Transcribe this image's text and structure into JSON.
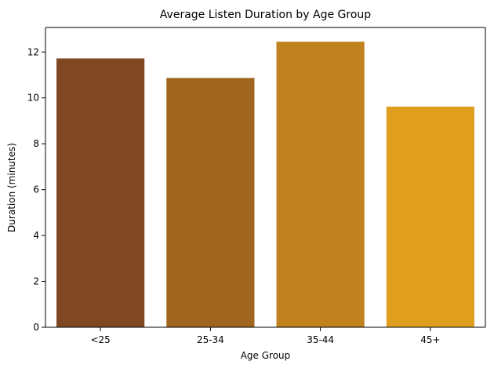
{
  "chart_data": {
    "type": "bar",
    "title": "Average Listen Duration by Age Group",
    "xlabel": "Age Group",
    "ylabel": "Duration (minutes)",
    "categories": [
      "<25",
      "25-34",
      "35-44",
      "45+"
    ],
    "values": [
      11.72,
      10.87,
      12.45,
      9.62
    ],
    "colors": [
      "#7f4722",
      "#a0661f",
      "#c0821f",
      "#e09e1f"
    ],
    "ylim": [
      0,
      13.07
    ],
    "yticks": [
      0,
      2,
      4,
      6,
      8,
      10,
      12
    ],
    "grid": false,
    "legend": "none"
  }
}
